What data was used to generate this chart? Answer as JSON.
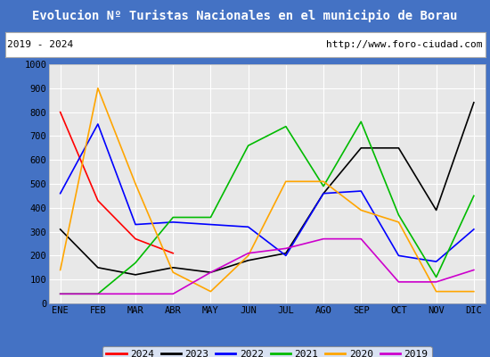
{
  "title": "Evolucion Nº Turistas Nacionales en el municipio de Borau",
  "subtitle_left": "2019 - 2024",
  "subtitle_right": "http://www.foro-ciudad.com",
  "title_bg_color": "#4472c4",
  "title_text_color": "#ffffff",
  "subtitle_bg_color": "#ffffff",
  "subtitle_text_color": "#000000",
  "plot_bg_color": "#e8e8e8",
  "grid_color": "#ffffff",
  "months": [
    "ENE",
    "FEB",
    "MAR",
    "ABR",
    "MAY",
    "JUN",
    "JUL",
    "AGO",
    "SEP",
    "OCT",
    "NOV",
    "DIC"
  ],
  "ylim": [
    0,
    1000
  ],
  "yticks": [
    0,
    100,
    200,
    300,
    400,
    500,
    600,
    700,
    800,
    900,
    1000
  ],
  "series": {
    "2024": {
      "color": "#ff0000",
      "data": [
        800,
        430,
        270,
        210,
        null,
        null,
        null,
        null,
        null,
        null,
        null,
        null
      ]
    },
    "2023": {
      "color": "#000000",
      "data": [
        310,
        150,
        120,
        150,
        130,
        180,
        210,
        460,
        650,
        650,
        390,
        840
      ]
    },
    "2022": {
      "color": "#0000ff",
      "data": [
        460,
        750,
        330,
        340,
        330,
        320,
        200,
        460,
        470,
        200,
        175,
        310
      ]
    },
    "2021": {
      "color": "#00bb00",
      "data": [
        40,
        40,
        170,
        360,
        360,
        660,
        740,
        490,
        760,
        370,
        110,
        450
      ]
    },
    "2020": {
      "color": "#ffa500",
      "data": [
        140,
        900,
        500,
        130,
        50,
        200,
        510,
        510,
        390,
        340,
        50,
        50
      ]
    },
    "2019": {
      "color": "#cc00cc",
      "data": [
        40,
        40,
        40,
        40,
        130,
        210,
        230,
        270,
        270,
        90,
        90,
        140
      ]
    }
  },
  "legend_order": [
    "2024",
    "2023",
    "2022",
    "2021",
    "2020",
    "2019"
  ]
}
